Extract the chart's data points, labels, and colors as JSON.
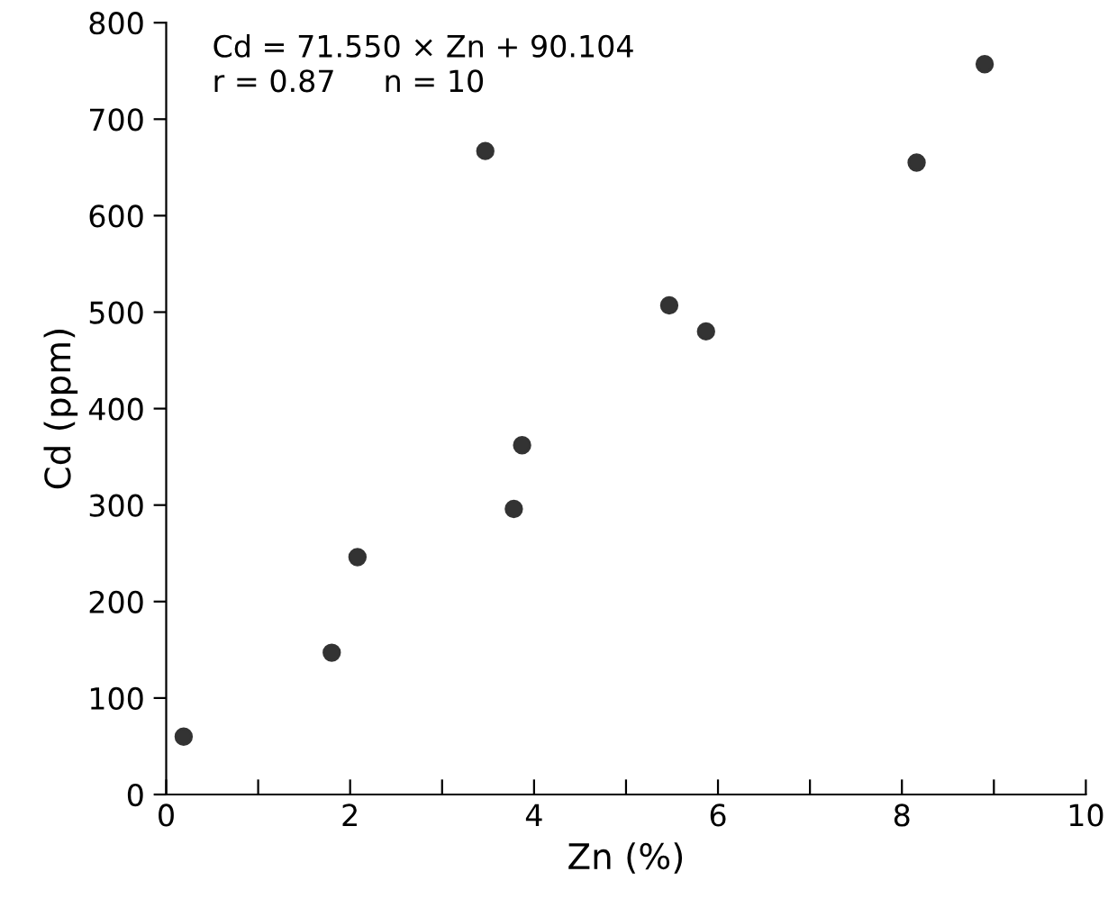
{
  "chart_data": {
    "type": "scatter",
    "xlabel": "Zn (%)",
    "ylabel": "Cd (ppm)",
    "annotations": [
      "Cd = 71.550 × Zn + 90.104",
      "r = 0.87     n = 10"
    ],
    "x": [
      0.19,
      1.8,
      2.08,
      3.47,
      3.78,
      3.87,
      5.47,
      5.87,
      8.16,
      8.9
    ],
    "series": [
      {
        "color": "#333333",
        "values": [
          60,
          147,
          246,
          667,
          296,
          362,
          507,
          480,
          655,
          757
        ]
      }
    ],
    "marker": "circle",
    "grid": false,
    "legend": false,
    "xlim": [
      0,
      10
    ],
    "ylim": [
      0,
      800
    ],
    "xticks": [
      0,
      {
        "value": 1,
        "label": null
      },
      2,
      {
        "value": 3,
        "label": null
      },
      4,
      {
        "value": 5,
        "label": null
      },
      6,
      {
        "value": 7,
        "label": null
      },
      8,
      {
        "value": 9,
        "label": null
      },
      10
    ],
    "yticks": [
      0,
      100,
      200,
      300,
      400,
      500,
      600,
      700,
      800
    ]
  }
}
